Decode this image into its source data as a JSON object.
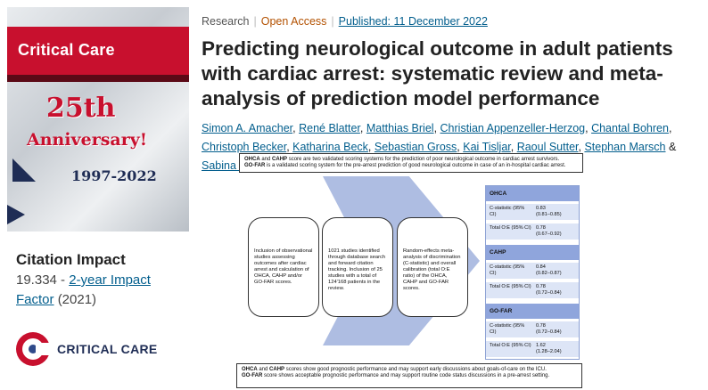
{
  "cover": {
    "journal_name": "Critical Care",
    "anniversary_line1": "25th",
    "anniversary_line2": "Anniversary!",
    "years": "1997-2022"
  },
  "citation_impact": {
    "heading": "Citation Impact",
    "value": "19.334 -",
    "link_text": "2-year Impact Factor",
    "year": "(2021)"
  },
  "logo": {
    "text": "CRITICAL CARE",
    "color": "#c8102e"
  },
  "article": {
    "type": "Research",
    "access": "Open Access",
    "published": "Published: 11 December 2022",
    "title": "Predicting neurological outcome in adult patients with cardiac arrest: systematic review and meta-analysis of prediction model performance",
    "authors": [
      "Simon A. Amacher",
      "René Blatter",
      "Matthias Briel",
      "Christian Appenzeller-Herzog",
      "Chantal Bohren",
      "Christoph Becker",
      "Katharina Beck",
      "Sebastian Gross",
      "Kai Tisljar",
      "Raoul Sutter",
      "Stephan Marsch",
      "Sabina Hunziker"
    ],
    "amp": "&"
  },
  "graphical_abstract": {
    "top_line1_bold": "OHCA",
    "top_line1_and": "and",
    "top_line1_bold2": "CAHP",
    "top_line1_rest": "score are two validated scoring systems for the prediction of poor neurological outcome in cardiac arrest survivors.",
    "top_line2_bold": "GO-FAR",
    "top_line2_rest": "is a validated scoring system for the pre-arrest prediction of good neurological outcome in case of an in-hospital cardiac arrest.",
    "step1": "Inclusion of observational studies assessing outcomes after cardiac arrest and calculation of OHCA, CAHP and/or GO-FAR scores.",
    "step2": "1021 studies identified through database search and forward citation tracking. Inclusion of 25 studies with a total of 124'168 patients in the review.",
    "step3": "Random-effects meta-analysis of discrimination (C-statistic) and overall calibration (total O:E ratio) of the OHCA, CAHP and GO-FAR scores.",
    "table": [
      {
        "score": "OHCA",
        "rows": [
          {
            "label": "C-statistic (95% CI)",
            "value": "0.83",
            "ci": "(0.81–0.85)"
          },
          {
            "label": "Total O:E (95% CI)",
            "value": "0.78",
            "ci": "(0.67–0.92)"
          }
        ]
      },
      {
        "score": "CAHP",
        "rows": [
          {
            "label": "C-statistic (95% CI)",
            "value": "0.84",
            "ci": "(0.82–0.87)"
          },
          {
            "label": "Total O:E (95% CI)",
            "value": "0.78",
            "ci": "(0.72–0.84)"
          }
        ]
      },
      {
        "score": "GO-FAR",
        "rows": [
          {
            "label": "C-statistic (95% CI)",
            "value": "0.78",
            "ci": "(0.72–0.84)"
          },
          {
            "label": "Total O:E (95% CI)",
            "value": "1.62",
            "ci": "(1.28–2.04)"
          }
        ]
      }
    ],
    "bottom_line1_bold": "OHCA",
    "bottom_line1_and": "and",
    "bottom_line1_bold2": "CAHP",
    "bottom_line1_rest": "scores show good prognostic performance and may support early discussions about goals-of-care on the ICU.",
    "bottom_line2_bold": "GO-FAR",
    "bottom_line2_rest": "score shows acceptable prognostic performance and may support routine code status discussions in a pre-arrest setting."
  }
}
